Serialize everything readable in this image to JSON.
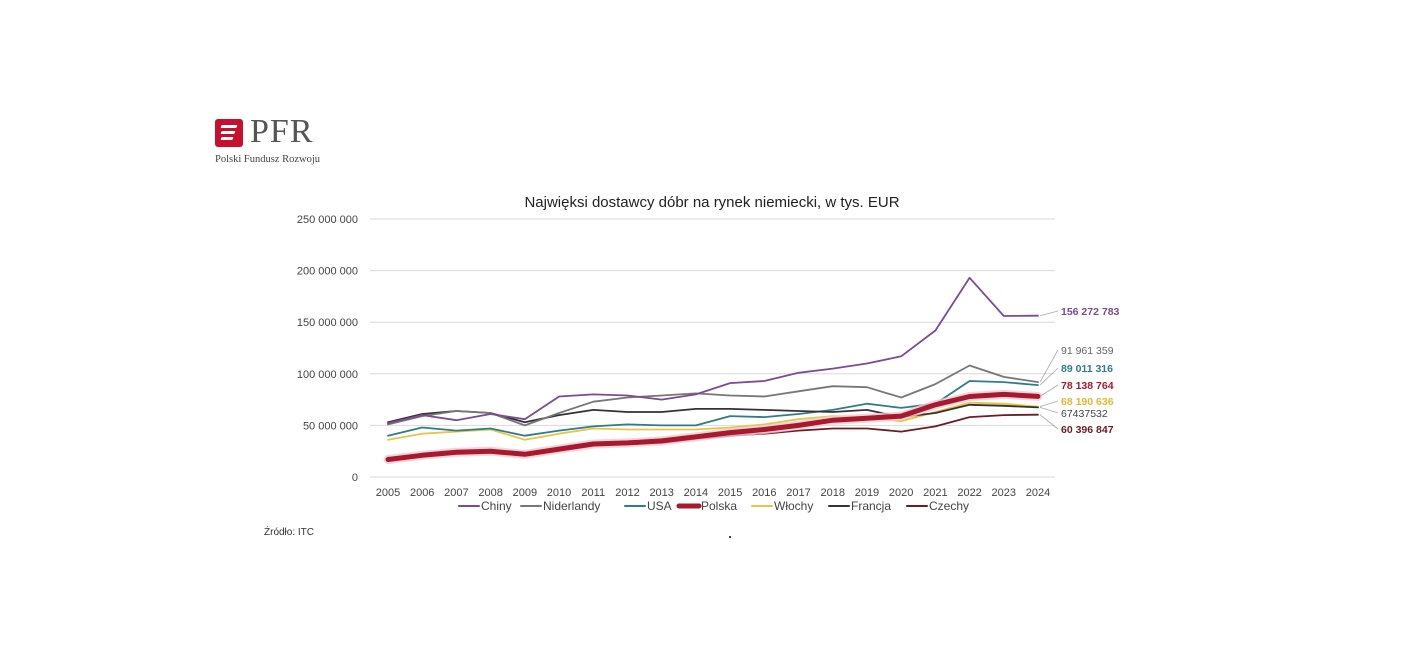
{
  "logo": {
    "name": "PFR",
    "subtitle": "Polski Fundusz Rozwoju",
    "color": "#c8102e"
  },
  "source": "Źródło: ITC",
  "chart_data": {
    "type": "line",
    "title": "Najwięksi dostawcy dóbr na rynek niemiecki,  w tys. EUR",
    "xlabel": "",
    "ylabel": "",
    "ylim": [
      0,
      250000000
    ],
    "yticks": [
      0,
      50000000,
      100000000,
      150000000,
      200000000,
      250000000
    ],
    "ytick_labels": [
      "0",
      "50 000 000",
      "100 000 000",
      "150 000 000",
      "200 000 000",
      "250 000 000"
    ],
    "grid": true,
    "legend_position": "bottom",
    "x": [
      "2005",
      "2006",
      "2007",
      "2008",
      "2009",
      "2010",
      "2011",
      "2012",
      "2013",
      "2014",
      "2015",
      "2016",
      "2017",
      "2018",
      "2019",
      "2020",
      "2021",
      "2022",
      "2023",
      "2024"
    ],
    "series": [
      {
        "name": "Chiny",
        "color": "#7b4b94",
        "width": 1.8,
        "values": [
          52000000,
          60000000,
          55000000,
          61000000,
          56000000,
          78000000,
          80000000,
          79000000,
          75000000,
          80000000,
          91000000,
          93000000,
          101000000,
          105000000,
          110000000,
          117000000,
          142000000,
          193000000,
          156000000,
          156272783
        ],
        "end_label": "156 272 783"
      },
      {
        "name": "Niderlandy",
        "color": "#777777",
        "width": 1.8,
        "values": [
          51000000,
          59000000,
          64000000,
          62000000,
          50000000,
          62000000,
          73000000,
          77000000,
          79000000,
          81000000,
          79000000,
          78000000,
          83000000,
          88000000,
          87000000,
          77000000,
          90000000,
          108000000,
          97000000,
          91961359
        ],
        "end_label": "91 961 359"
      },
      {
        "name": "USA",
        "color": "#2e7d87",
        "width": 1.8,
        "values": [
          40000000,
          48000000,
          45000000,
          47000000,
          40000000,
          45000000,
          49000000,
          51000000,
          50000000,
          50000000,
          59000000,
          58000000,
          61000000,
          65000000,
          71000000,
          67000000,
          71000000,
          93000000,
          92000000,
          89011316
        ],
        "end_label": "89 011 316"
      },
      {
        "name": "Polska",
        "color": "#a6192e",
        "width": 5,
        "values": [
          17000000,
          21000000,
          24000000,
          25000000,
          22000000,
          27000000,
          32000000,
          33000000,
          35000000,
          39000000,
          43000000,
          46000000,
          50000000,
          55000000,
          57000000,
          59000000,
          70000000,
          78000000,
          80000000,
          78138764
        ],
        "end_label": "78 138 764"
      },
      {
        "name": "Włochy",
        "color": "#e8c547",
        "width": 1.8,
        "values": [
          36000000,
          42000000,
          44000000,
          46000000,
          36000000,
          42000000,
          47000000,
          46000000,
          46000000,
          46000000,
          48000000,
          51000000,
          56000000,
          59000000,
          58000000,
          54000000,
          63000000,
          72000000,
          71000000,
          68190636
        ],
        "end_label": "68 190 636"
      },
      {
        "name": "Francja",
        "color": "#333333",
        "width": 1.8,
        "values": [
          53000000,
          61000000,
          64000000,
          62000000,
          53000000,
          60000000,
          65000000,
          63000000,
          63000000,
          66000000,
          66000000,
          65000000,
          64000000,
          63000000,
          65000000,
          58000000,
          62000000,
          70000000,
          69000000,
          67437532
        ],
        "end_label": "67437532"
      },
      {
        "name": "Czechy",
        "color": "#6b1c24",
        "width": 1.8,
        "values": [
          16000000,
          20000000,
          24000000,
          25000000,
          22000000,
          27000000,
          31000000,
          32000000,
          33000000,
          37000000,
          40000000,
          42000000,
          45000000,
          47000000,
          47000000,
          44000000,
          49000000,
          58000000,
          60000000,
          60396847
        ],
        "end_label": "60 396 847"
      }
    ]
  }
}
